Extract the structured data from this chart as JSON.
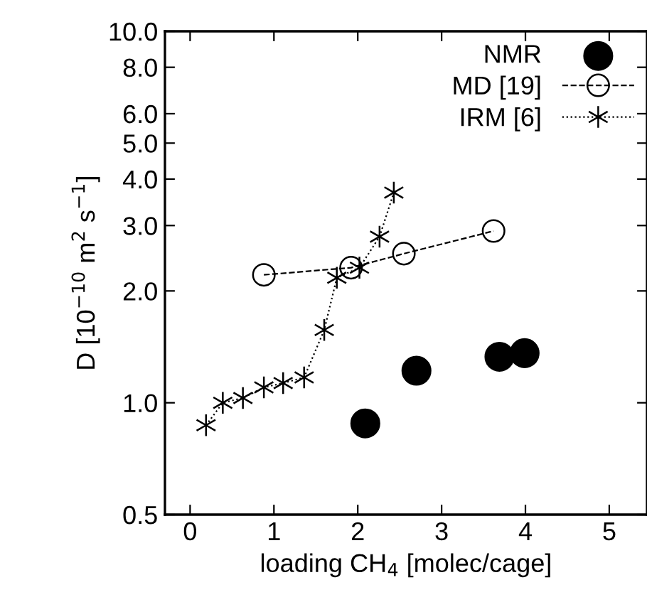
{
  "chart_data": {
    "type": "scatter",
    "xlabel": "loading CH$_{4}$ [molec/cage]",
    "ylabel": "D [10$^{−10}$ m$^{2}$ s$^{−1}$]",
    "series": [
      {
        "name": "NMR",
        "color": "#000000",
        "marker": "circle",
        "x": [
          2.09,
          2.7,
          3.69,
          3.99
        ],
        "values": [
          0.88,
          1.22,
          1.33,
          1.36
        ]
      },
      {
        "name": "MD [19]",
        "type": "line",
        "color": "#000000",
        "marker": "circle",
        "line_style": "dashed",
        "x": [
          0.88,
          1.92,
          2.55,
          3.62
        ],
        "values": [
          2.21,
          2.31,
          2.52,
          2.9
        ]
      },
      {
        "name": "IRM [6]",
        "type": "line",
        "color": "#000000",
        "marker": "cross",
        "line_style": "dotted",
        "x": [
          0.19,
          0.39,
          0.63,
          0.88,
          1.11,
          1.36,
          1.6,
          1.75,
          2.02,
          2.26,
          2.43
        ],
        "values": [
          0.87,
          1.0,
          1.03,
          1.1,
          1.13,
          1.17,
          1.57,
          2.17,
          2.31,
          2.8,
          3.68
        ]
      }
    ],
    "log": "y",
    "xlim": [
      -0.3,
      5.45
    ],
    "ylim": [
      0.5,
      10.0
    ],
    "xticks": [
      0,
      1,
      2,
      3,
      4,
      5
    ],
    "yticks": [
      {
        "value": 0.5,
        "label": "0.5"
      },
      {
        "value": 1,
        "label": "1.0"
      },
      {
        "value": 2,
        "label": "2.0"
      },
      {
        "value": 3,
        "label": "3.0"
      },
      {
        "value": 4,
        "label": "4.0"
      },
      {
        "value": 5,
        "label": "5.0"
      },
      {
        "value": 6,
        "label": "6.0"
      },
      {
        "value": 8,
        "label": "8.0"
      },
      {
        "value": 10,
        "label": "10.0"
      }
    ],
    "grid": false,
    "legend": "top right"
  }
}
